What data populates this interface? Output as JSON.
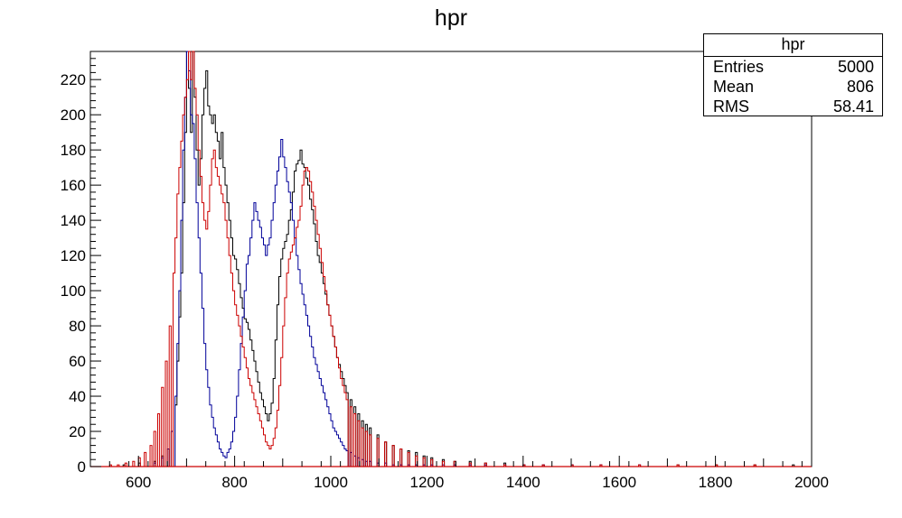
{
  "colors": {
    "black": "#000000",
    "blue": "#000099",
    "red": "#cc0000"
  },
  "stats": {
    "title": "hpr",
    "rows": [
      {
        "label": "Entries",
        "value": "5000"
      },
      {
        "label": "Mean",
        "value": "806"
      },
      {
        "label": "RMS",
        "value": "58.41"
      }
    ]
  },
  "chart_data": {
    "type": "histogram",
    "title": "hpr",
    "xlabel": "",
    "ylabel": "",
    "xlim": [
      500,
      2000
    ],
    "ylim": [
      0,
      236
    ],
    "x_ticks": [
      600,
      800,
      1000,
      1200,
      1400,
      1600,
      1800,
      2000
    ],
    "y_ticks": [
      0,
      20,
      40,
      60,
      80,
      100,
      120,
      140,
      160,
      180,
      200,
      220
    ],
    "grid": false,
    "bin_width": 4,
    "series": [
      {
        "color": "black",
        "x": [
          568,
          600,
          632,
          648,
          660,
          668,
          676,
          680,
          684,
          688,
          692,
          696,
          700,
          704,
          708,
          712,
          716,
          720,
          724,
          728,
          732,
          736,
          740,
          744,
          748,
          752,
          756,
          760,
          764,
          768,
          772,
          776,
          780,
          784,
          788,
          792,
          796,
          800,
          804,
          808,
          812,
          816,
          820,
          824,
          828,
          832,
          836,
          840,
          844,
          848,
          852,
          856,
          860,
          864,
          868,
          872,
          876,
          880,
          884,
          888,
          892,
          896,
          900,
          904,
          908,
          912,
          916,
          920,
          924,
          928,
          932,
          936,
          940,
          944,
          948,
          952,
          956,
          960,
          964,
          968,
          972,
          976,
          980,
          984,
          988,
          992,
          996,
          1000,
          1004,
          1008,
          1012,
          1016,
          1020,
          1024,
          1028,
          1032,
          1040,
          1048,
          1056,
          1064,
          1072,
          1080,
          1096,
          1112,
          1128,
          1144,
          1160,
          1176,
          1192,
          1208,
          1232,
          1256,
          1288,
          1320,
          1360,
          1400,
          1440,
          1500,
          1560,
          1640,
          1720,
          1800,
          1880,
          1960
        ],
        "y": [
          1,
          2,
          3,
          6,
          10,
          20,
          35,
          60,
          85,
          110,
          150,
          190,
          236,
          215,
          190,
          236,
          210,
          180,
          160,
          175,
          200,
          215,
          225,
          205,
          200,
          195,
          200,
          190,
          185,
          175,
          190,
          170,
          160,
          150,
          140,
          130,
          120,
          118,
          112,
          104,
          96,
          90,
          84,
          82,
          78,
          72,
          66,
          60,
          54,
          48,
          42,
          38,
          34,
          30,
          26,
          30,
          36,
          50,
          72,
          92,
          108,
          118,
          124,
          128,
          132,
          140,
          146,
          156,
          168,
          172,
          174,
          180,
          172,
          170,
          164,
          160,
          152,
          146,
          138,
          128,
          120,
          116,
          110,
          104,
          98,
          92,
          86,
          80,
          74,
          68,
          62,
          58,
          54,
          50,
          46,
          42,
          38,
          34,
          30,
          26,
          24,
          22,
          18,
          14,
          12,
          10,
          9,
          8,
          6,
          5,
          4,
          3,
          3,
          2,
          2,
          1,
          1,
          1,
          1,
          1,
          1,
          1,
          1,
          1
        ]
      },
      {
        "color": "blue",
        "x": [
          632,
          648,
          660,
          668,
          676,
          680,
          684,
          688,
          692,
          696,
          700,
          704,
          708,
          712,
          716,
          720,
          724,
          728,
          732,
          736,
          740,
          744,
          748,
          752,
          756,
          760,
          764,
          768,
          772,
          776,
          780,
          784,
          788,
          792,
          796,
          800,
          804,
          808,
          812,
          816,
          820,
          824,
          828,
          832,
          836,
          840,
          844,
          848,
          852,
          856,
          860,
          864,
          868,
          872,
          876,
          880,
          884,
          888,
          892,
          896,
          900,
          904,
          908,
          912,
          916,
          920,
          924,
          928,
          932,
          936,
          940,
          944,
          948,
          952,
          956,
          960,
          964,
          968,
          972,
          976,
          980,
          984,
          988,
          992,
          996,
          1000,
          1004,
          1008,
          1012,
          1016,
          1020,
          1024,
          1028,
          1032,
          1040,
          1048,
          1056,
          1064,
          1072,
          1080,
          1096,
          1112,
          1128,
          1144,
          1160,
          1176,
          1192,
          1208,
          1232,
          1256,
          1288,
          1320,
          1360,
          1400,
          1440,
          1500,
          1560,
          1640
        ],
        "y": [
          2,
          5,
          10,
          20,
          40,
          70,
          100,
          140,
          180,
          210,
          236,
          225,
          200,
          195,
          175,
          150,
          130,
          110,
          90,
          70,
          55,
          45,
          35,
          28,
          22,
          18,
          14,
          10,
          8,
          6,
          5,
          8,
          10,
          14,
          20,
          28,
          40,
          55,
          70,
          85,
          100,
          115,
          120,
          130,
          140,
          150,
          145,
          140,
          136,
          130,
          126,
          120,
          126,
          130,
          140,
          150,
          160,
          168,
          176,
          186,
          176,
          170,
          162,
          156,
          150,
          140,
          130,
          120,
          112,
          104,
          98,
          92,
          86,
          80,
          74,
          68,
          62,
          58,
          54,
          50,
          46,
          42,
          38,
          34,
          30,
          26,
          22,
          20,
          18,
          16,
          14,
          12,
          10,
          9,
          8,
          6,
          5,
          4,
          3,
          3,
          2,
          2,
          1,
          1,
          1,
          1,
          1,
          1,
          1,
          1,
          1,
          1,
          1,
          1,
          1,
          1,
          1,
          1
        ]
      },
      {
        "color": "red",
        "x": [
          540,
          556,
          572,
          588,
          600,
          612,
          624,
          632,
          640,
          648,
          656,
          664,
          672,
          676,
          680,
          684,
          688,
          692,
          696,
          700,
          704,
          708,
          712,
          716,
          720,
          724,
          728,
          732,
          736,
          740,
          744,
          748,
          752,
          756,
          760,
          764,
          768,
          772,
          776,
          780,
          784,
          788,
          792,
          796,
          800,
          804,
          808,
          812,
          816,
          820,
          824,
          828,
          832,
          836,
          840,
          844,
          848,
          852,
          856,
          860,
          864,
          868,
          872,
          876,
          880,
          884,
          888,
          892,
          896,
          900,
          904,
          908,
          912,
          916,
          920,
          924,
          928,
          932,
          936,
          940,
          944,
          948,
          952,
          956,
          960,
          964,
          968,
          972,
          976,
          980,
          984,
          988,
          992,
          996,
          1000,
          1004,
          1008,
          1012,
          1016,
          1020,
          1024,
          1028,
          1032,
          1040,
          1048,
          1056,
          1064,
          1072,
          1080,
          1096,
          1112,
          1128,
          1144,
          1160,
          1176,
          1192,
          1208,
          1232,
          1256,
          1288,
          1320,
          1360,
          1400,
          1440,
          1500,
          1560,
          1640,
          1720,
          1800,
          1880,
          1960
        ],
        "y": [
          1,
          1,
          2,
          3,
          5,
          8,
          12,
          20,
          30,
          45,
          60,
          80,
          110,
          130,
          155,
          170,
          185,
          200,
          210,
          220,
          236,
          220,
          236,
          215,
          200,
          180,
          165,
          150,
          140,
          135,
          145,
          160,
          175,
          180,
          170,
          165,
          160,
          155,
          150,
          140,
          130,
          120,
          110,
          100,
          92,
          86,
          80,
          74,
          68,
          62,
          56,
          50,
          46,
          42,
          38,
          34,
          30,
          26,
          22,
          18,
          14,
          12,
          10,
          12,
          16,
          22,
          32,
          46,
          62,
          80,
          96,
          110,
          118,
          122,
          126,
          130,
          136,
          140,
          148,
          160,
          168,
          170,
          168,
          162,
          156,
          148,
          140,
          132,
          124,
          116,
          108,
          100,
          92,
          86,
          80,
          74,
          68,
          62,
          56,
          50,
          46,
          42,
          38,
          34,
          30,
          26,
          22,
          20,
          18,
          16,
          14,
          12,
          10,
          8,
          6,
          5,
          4,
          3,
          3,
          2,
          2,
          1,
          1,
          1,
          1,
          1,
          1,
          1,
          1,
          1
        ]
      }
    ]
  }
}
